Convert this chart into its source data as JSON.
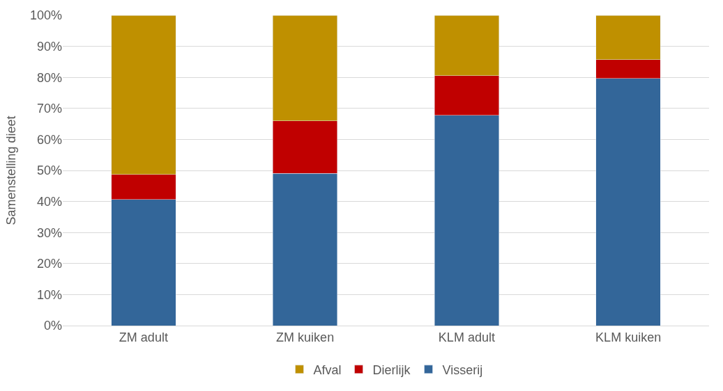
{
  "chart_data": {
    "type": "bar",
    "stacked": true,
    "ylabel": "Samenstelling dieet",
    "categories": [
      "ZM adult",
      "ZM kuiken",
      "KLM adult",
      "KLM kuiken"
    ],
    "series": [
      {
        "name": "Visserij",
        "color": "#336699",
        "values": [
          40.6,
          49.1,
          67.8,
          79.6
        ]
      },
      {
        "name": "Dierlijk",
        "color": "#c00000",
        "values": [
          8.1,
          16.9,
          12.7,
          6.1
        ]
      },
      {
        "name": "Afval",
        "color": "#bf9000",
        "values": [
          51.3,
          34.0,
          19.5,
          14.3
        ]
      }
    ],
    "ylim": [
      0,
      100
    ],
    "yticks": [
      {
        "value": 0,
        "label": "0%"
      },
      {
        "value": 10,
        "label": "10%"
      },
      {
        "value": 20,
        "label": "20%"
      },
      {
        "value": 30,
        "label": "30%"
      },
      {
        "value": 40,
        "label": "40%"
      },
      {
        "value": 50,
        "label": "50%"
      },
      {
        "value": 60,
        "label": "60%"
      },
      {
        "value": 70,
        "label": "70%"
      },
      {
        "value": 80,
        "label": "80%"
      },
      {
        "value": 90,
        "label": "90%"
      },
      {
        "value": 100,
        "label": "100%"
      }
    ],
    "grid": "y",
    "legend": "bottom"
  }
}
